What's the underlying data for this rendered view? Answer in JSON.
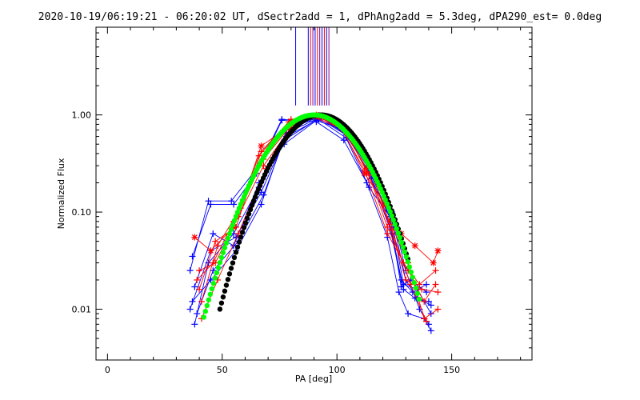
{
  "chart_data": {
    "type": "line",
    "title": "2020-10-19/06:19:21 - 06:20:02 UT, dSectr2add = 1, dPhAng2add = 5.3deg, dPA290_est=  0.0deg",
    "xlabel": "PA [deg]",
    "ylabel": "Normalized Flux",
    "xlim": [
      -5,
      185
    ],
    "ylim": [
      0.003,
      8
    ],
    "yscale": "log",
    "x_ticks": [
      0,
      50,
      100,
      150
    ],
    "y_ticks": [
      0.01,
      0.1,
      1.0
    ],
    "y_tick_labels": [
      "0.01",
      "0.10",
      "1.00"
    ],
    "colors": {
      "red": "#ff0000",
      "blue": "#0000ff",
      "black": "#000000",
      "green": "#00ff00",
      "purple": "#800080"
    },
    "vertical_markers": [
      {
        "x": 82,
        "color": "#0000ff"
      },
      {
        "x": 87.5,
        "color": "#0000ff"
      },
      {
        "x": 88.5,
        "color": "#ff0000"
      },
      {
        "x": 89.5,
        "color": "#800080"
      },
      {
        "x": 90.5,
        "color": "#0000ff"
      },
      {
        "x": 91.5,
        "color": "#ff0000"
      },
      {
        "x": 92.5,
        "color": "#800080"
      },
      {
        "x": 93.5,
        "color": "#0000ff"
      },
      {
        "x": 94.5,
        "color": "#ff0000"
      },
      {
        "x": 95.5,
        "color": "#0000ff"
      },
      {
        "x": 96.5,
        "color": "#800080"
      }
    ],
    "series": [
      {
        "color": "#0000ff",
        "marker": "plus",
        "x": [
          36,
          44,
          54,
          66,
          76,
          91,
          103,
          113,
          122,
          127,
          131,
          138,
          141
        ],
        "y": [
          0.025,
          0.13,
          0.13,
          0.3,
          0.9,
          0.85,
          0.55,
          0.2,
          0.055,
          0.015,
          0.009,
          0.008,
          0.006
        ]
      },
      {
        "color": "#0000ff",
        "marker": "plus",
        "x": [
          37,
          45,
          55,
          65,
          76,
          92,
          104,
          114,
          123,
          128,
          132,
          139
        ],
        "y": [
          0.035,
          0.12,
          0.12,
          0.25,
          0.88,
          0.9,
          0.58,
          0.18,
          0.09,
          0.017,
          0.02,
          0.015
        ]
      },
      {
        "color": "#0000ff",
        "marker": "plus",
        "x": [
          38,
          46,
          55,
          66,
          77,
          93,
          105,
          115,
          124,
          129,
          134,
          140
        ],
        "y": [
          0.017,
          0.06,
          0.045,
          0.2,
          0.5,
          0.95,
          0.6,
          0.22,
          0.06,
          0.016,
          0.013,
          0.012
        ]
      },
      {
        "color": "#0000ff",
        "marker": "plus",
        "x": [
          36,
          45,
          56,
          67,
          77,
          92,
          104,
          114,
          123,
          128,
          133,
          139
        ],
        "y": [
          0.01,
          0.04,
          0.055,
          0.16,
          0.55,
          0.92,
          0.65,
          0.25,
          0.07,
          0.02,
          0.015,
          0.018
        ]
      },
      {
        "color": "#0000ff",
        "marker": "plus",
        "x": [
          38,
          44,
          55,
          66,
          78,
          91,
          103,
          113,
          124,
          129,
          135,
          141
        ],
        "y": [
          0.007,
          0.03,
          0.06,
          0.18,
          0.6,
          0.88,
          0.7,
          0.3,
          0.08,
          0.018,
          0.016,
          0.009
        ]
      },
      {
        "color": "#0000ff",
        "marker": "plus",
        "x": [
          39,
          46,
          57,
          68,
          78,
          92,
          104,
          114,
          124,
          130,
          136,
          140
        ],
        "y": [
          0.009,
          0.025,
          0.05,
          0.15,
          0.65,
          0.93,
          0.62,
          0.26,
          0.1,
          0.025,
          0.01,
          0.007
        ]
      },
      {
        "color": "#0000ff",
        "marker": "plus",
        "x": [
          37,
          45,
          56,
          67,
          78,
          93,
          105,
          115,
          125,
          130,
          135,
          141
        ],
        "y": [
          0.012,
          0.02,
          0.04,
          0.12,
          0.7,
          0.97,
          0.6,
          0.22,
          0.07,
          0.02,
          0.013,
          0.011
        ]
      },
      {
        "color": "#ff0000",
        "marker": "star",
        "x": [
          38,
          45,
          55,
          67,
          79,
          90,
          102,
          112,
          121,
          128,
          134,
          142,
          144
        ],
        "y": [
          0.055,
          0.04,
          0.07,
          0.48,
          0.75,
          0.98,
          0.75,
          0.25,
          0.12,
          0.06,
          0.045,
          0.03,
          0.04
        ]
      },
      {
        "color": "#ff0000",
        "marker": "plus",
        "x": [
          39,
          46,
          55,
          66,
          79,
          91,
          103,
          113,
          122,
          129,
          136,
          143
        ],
        "y": [
          0.02,
          0.03,
          0.08,
          0.38,
          0.85,
          1.0,
          0.7,
          0.28,
          0.07,
          0.03,
          0.018,
          0.025
        ]
      },
      {
        "color": "#ff0000",
        "marker": "plus",
        "x": [
          40,
          47,
          56,
          67,
          80,
          92,
          104,
          114,
          123,
          130,
          137,
          144
        ],
        "y": [
          0.016,
          0.05,
          0.07,
          0.42,
          0.9,
          0.98,
          0.68,
          0.3,
          0.075,
          0.02,
          0.016,
          0.015
        ]
      },
      {
        "color": "#ff0000",
        "marker": "plus",
        "x": [
          40,
          47,
          57,
          68,
          81,
          90,
          102,
          112,
          122,
          131,
          138,
          143
        ],
        "y": [
          0.025,
          0.03,
          0.09,
          0.3,
          0.8,
          0.95,
          0.72,
          0.27,
          0.06,
          0.025,
          0.012,
          0.018
        ]
      },
      {
        "color": "#ff0000",
        "marker": "plus",
        "x": [
          41,
          48,
          58,
          68,
          80,
          91,
          103,
          113,
          123,
          131,
          138,
          144
        ],
        "y": [
          0.012,
          0.045,
          0.11,
          0.35,
          0.78,
          0.97,
          0.75,
          0.26,
          0.08,
          0.03,
          0.008,
          0.01
        ]
      },
      {
        "color": "#ff0000",
        "marker": "plus",
        "x": [
          41,
          48,
          57,
          69,
          81,
          92,
          104,
          114,
          124,
          132,
          139
        ],
        "y": [
          0.008,
          0.02,
          0.06,
          0.28,
          0.82,
          0.99,
          0.66,
          0.24,
          0.065,
          0.018,
          0.0075
        ]
      }
    ],
    "model_curves": [
      {
        "color": "#000000",
        "center": 93,
        "sigma": 14.5,
        "xrange": [
          49,
          131
        ]
      },
      {
        "color": "#00ff00",
        "center": 90,
        "sigma": 15.5,
        "xrange": [
          42,
          136
        ]
      }
    ]
  }
}
